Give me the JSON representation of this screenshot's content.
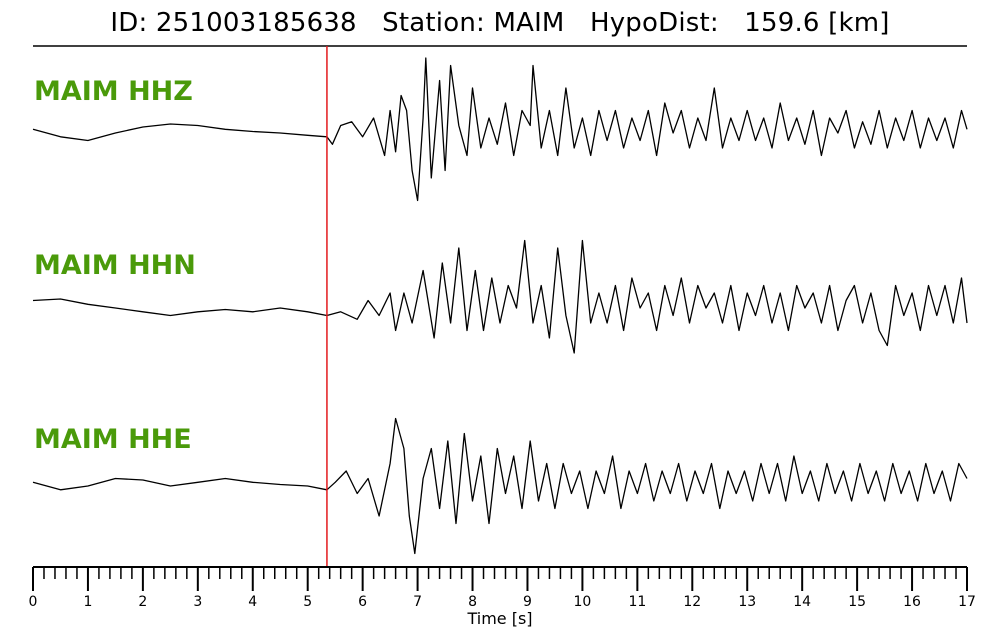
{
  "title": "ID: 251003185638   Station: MAIM   HypoDist:   159.6 [km]",
  "chart_data": {
    "type": "line",
    "title": "ID: 251003185638   Station: MAIM   HypoDist:   159.6 [km]",
    "xlabel": "Time [s]",
    "xlim": [
      0,
      17
    ],
    "x_ticks": [
      "0",
      "1",
      "2",
      "3",
      "4",
      "5",
      "6",
      "7",
      "8",
      "9",
      "10",
      "11",
      "12",
      "13",
      "14",
      "15",
      "16",
      "17"
    ],
    "minor_tick_step": 0.2,
    "p_pick_time": 5.35,
    "pick_color": "#e31a1c",
    "trace_color": "#000000",
    "label_color": "#4a9a0a",
    "grid": false,
    "traces": [
      {
        "name": "MAIM HHZ",
        "points": [
          [
            0,
            0.05
          ],
          [
            0.5,
            -0.05
          ],
          [
            1,
            -0.1
          ],
          [
            1.5,
            0.0
          ],
          [
            2,
            0.08
          ],
          [
            2.5,
            0.12
          ],
          [
            3,
            0.1
          ],
          [
            3.5,
            0.05
          ],
          [
            4,
            0.02
          ],
          [
            4.5,
            0.0
          ],
          [
            5,
            -0.03
          ],
          [
            5.35,
            -0.05
          ],
          [
            5.45,
            -0.15
          ],
          [
            5.6,
            0.1
          ],
          [
            5.8,
            0.15
          ],
          [
            6.0,
            -0.05
          ],
          [
            6.2,
            0.2
          ],
          [
            6.4,
            -0.3
          ],
          [
            6.5,
            0.3
          ],
          [
            6.6,
            -0.25
          ],
          [
            6.7,
            0.5
          ],
          [
            6.8,
            0.3
          ],
          [
            6.9,
            -0.5
          ],
          [
            7.0,
            -0.9
          ],
          [
            7.1,
            0.2
          ],
          [
            7.15,
            1.0
          ],
          [
            7.25,
            -0.6
          ],
          [
            7.4,
            0.7
          ],
          [
            7.5,
            -0.5
          ],
          [
            7.6,
            0.9
          ],
          [
            7.75,
            0.1
          ],
          [
            7.9,
            -0.3
          ],
          [
            8.0,
            0.6
          ],
          [
            8.15,
            -0.2
          ],
          [
            8.3,
            0.2
          ],
          [
            8.45,
            -0.15
          ],
          [
            8.6,
            0.4
          ],
          [
            8.75,
            -0.3
          ],
          [
            8.9,
            0.3
          ],
          [
            9.05,
            0.1
          ],
          [
            9.1,
            0.9
          ],
          [
            9.25,
            -0.2
          ],
          [
            9.4,
            0.3
          ],
          [
            9.55,
            -0.3
          ],
          [
            9.7,
            0.6
          ],
          [
            9.85,
            -0.2
          ],
          [
            10.0,
            0.2
          ],
          [
            10.15,
            -0.3
          ],
          [
            10.3,
            0.3
          ],
          [
            10.45,
            -0.1
          ],
          [
            10.6,
            0.3
          ],
          [
            10.75,
            -0.2
          ],
          [
            10.9,
            0.2
          ],
          [
            11.05,
            -0.1
          ],
          [
            11.2,
            0.3
          ],
          [
            11.35,
            -0.3
          ],
          [
            11.5,
            0.4
          ],
          [
            11.65,
            0.0
          ],
          [
            11.8,
            0.3
          ],
          [
            11.95,
            -0.2
          ],
          [
            12.1,
            0.2
          ],
          [
            12.25,
            -0.1
          ],
          [
            12.4,
            0.6
          ],
          [
            12.55,
            -0.2
          ],
          [
            12.7,
            0.2
          ],
          [
            12.85,
            -0.1
          ],
          [
            13.0,
            0.3
          ],
          [
            13.15,
            -0.1
          ],
          [
            13.3,
            0.2
          ],
          [
            13.45,
            -0.2
          ],
          [
            13.6,
            0.4
          ],
          [
            13.75,
            -0.1
          ],
          [
            13.9,
            0.2
          ],
          [
            14.05,
            -0.15
          ],
          [
            14.2,
            0.3
          ],
          [
            14.35,
            -0.3
          ],
          [
            14.5,
            0.2
          ],
          [
            14.65,
            0.0
          ],
          [
            14.8,
            0.3
          ],
          [
            14.95,
            -0.2
          ],
          [
            15.1,
            0.15
          ],
          [
            15.25,
            -0.15
          ],
          [
            15.4,
            0.3
          ],
          [
            15.55,
            -0.2
          ],
          [
            15.7,
            0.2
          ],
          [
            15.85,
            -0.1
          ],
          [
            16.0,
            0.3
          ],
          [
            16.15,
            -0.2
          ],
          [
            16.3,
            0.2
          ],
          [
            16.45,
            -0.1
          ],
          [
            16.6,
            0.2
          ],
          [
            16.75,
            -0.2
          ],
          [
            16.9,
            0.3
          ],
          [
            17.0,
            0.05
          ]
        ]
      },
      {
        "name": "MAIM HHN",
        "points": [
          [
            0,
            0.1
          ],
          [
            0.5,
            0.12
          ],
          [
            1,
            0.05
          ],
          [
            1.5,
            0.0
          ],
          [
            2,
            -0.05
          ],
          [
            2.5,
            -0.1
          ],
          [
            3,
            -0.05
          ],
          [
            3.5,
            -0.02
          ],
          [
            4,
            -0.05
          ],
          [
            4.5,
            0.0
          ],
          [
            5,
            -0.05
          ],
          [
            5.35,
            -0.1
          ],
          [
            5.6,
            -0.05
          ],
          [
            5.9,
            -0.15
          ],
          [
            6.1,
            0.1
          ],
          [
            6.3,
            -0.1
          ],
          [
            6.5,
            0.2
          ],
          [
            6.6,
            -0.3
          ],
          [
            6.75,
            0.2
          ],
          [
            6.9,
            -0.2
          ],
          [
            7.1,
            0.5
          ],
          [
            7.3,
            -0.4
          ],
          [
            7.45,
            0.6
          ],
          [
            7.6,
            -0.2
          ],
          [
            7.75,
            0.8
          ],
          [
            7.9,
            -0.3
          ],
          [
            8.05,
            0.5
          ],
          [
            8.2,
            -0.3
          ],
          [
            8.35,
            0.4
          ],
          [
            8.5,
            -0.2
          ],
          [
            8.65,
            0.3
          ],
          [
            8.8,
            0.0
          ],
          [
            8.95,
            0.9
          ],
          [
            9.1,
            -0.2
          ],
          [
            9.25,
            0.3
          ],
          [
            9.4,
            -0.4
          ],
          [
            9.55,
            0.8
          ],
          [
            9.7,
            -0.1
          ],
          [
            9.85,
            -0.6
          ],
          [
            10.0,
            0.9
          ],
          [
            10.15,
            -0.2
          ],
          [
            10.3,
            0.2
          ],
          [
            10.45,
            -0.2
          ],
          [
            10.6,
            0.3
          ],
          [
            10.75,
            -0.3
          ],
          [
            10.9,
            0.4
          ],
          [
            11.05,
            0.0
          ],
          [
            11.2,
            0.2
          ],
          [
            11.35,
            -0.3
          ],
          [
            11.5,
            0.3
          ],
          [
            11.65,
            -0.1
          ],
          [
            11.8,
            0.4
          ],
          [
            11.95,
            -0.2
          ],
          [
            12.1,
            0.3
          ],
          [
            12.25,
            0.0
          ],
          [
            12.4,
            0.2
          ],
          [
            12.55,
            -0.2
          ],
          [
            12.7,
            0.3
          ],
          [
            12.85,
            -0.3
          ],
          [
            13.0,
            0.2
          ],
          [
            13.15,
            -0.1
          ],
          [
            13.3,
            0.3
          ],
          [
            13.45,
            -0.2
          ],
          [
            13.6,
            0.2
          ],
          [
            13.75,
            -0.3
          ],
          [
            13.9,
            0.3
          ],
          [
            14.05,
            0.0
          ],
          [
            14.2,
            0.2
          ],
          [
            14.35,
            -0.2
          ],
          [
            14.5,
            0.3
          ],
          [
            14.65,
            -0.3
          ],
          [
            14.8,
            0.1
          ],
          [
            14.95,
            0.3
          ],
          [
            15.1,
            -0.2
          ],
          [
            15.25,
            0.2
          ],
          [
            15.4,
            -0.3
          ],
          [
            15.55,
            -0.5
          ],
          [
            15.7,
            0.3
          ],
          [
            15.85,
            -0.1
          ],
          [
            16.0,
            0.2
          ],
          [
            16.15,
            -0.3
          ],
          [
            16.3,
            0.3
          ],
          [
            16.45,
            -0.1
          ],
          [
            16.6,
            0.3
          ],
          [
            16.75,
            -0.2
          ],
          [
            16.9,
            0.4
          ],
          [
            17.0,
            -0.2
          ]
        ]
      },
      {
        "name": "MAIM HHE",
        "points": [
          [
            0,
            0.05
          ],
          [
            0.5,
            -0.05
          ],
          [
            1,
            0.0
          ],
          [
            1.5,
            0.1
          ],
          [
            2,
            0.08
          ],
          [
            2.5,
            0.0
          ],
          [
            3,
            0.05
          ],
          [
            3.5,
            0.1
          ],
          [
            4,
            0.05
          ],
          [
            4.5,
            0.02
          ],
          [
            5,
            0.0
          ],
          [
            5.35,
            -0.05
          ],
          [
            5.5,
            0.05
          ],
          [
            5.7,
            0.2
          ],
          [
            5.9,
            -0.1
          ],
          [
            6.1,
            0.1
          ],
          [
            6.3,
            -0.4
          ],
          [
            6.5,
            0.3
          ],
          [
            6.6,
            0.9
          ],
          [
            6.75,
            0.5
          ],
          [
            6.85,
            -0.4
          ],
          [
            6.95,
            -0.9
          ],
          [
            7.1,
            0.1
          ],
          [
            7.25,
            0.5
          ],
          [
            7.4,
            -0.3
          ],
          [
            7.55,
            0.6
          ],
          [
            7.7,
            -0.5
          ],
          [
            7.85,
            0.7
          ],
          [
            8.0,
            -0.2
          ],
          [
            8.15,
            0.4
          ],
          [
            8.3,
            -0.5
          ],
          [
            8.45,
            0.5
          ],
          [
            8.6,
            -0.1
          ],
          [
            8.75,
            0.4
          ],
          [
            8.9,
            -0.3
          ],
          [
            9.05,
            0.6
          ],
          [
            9.2,
            -0.2
          ],
          [
            9.35,
            0.3
          ],
          [
            9.5,
            -0.3
          ],
          [
            9.65,
            0.3
          ],
          [
            9.8,
            -0.1
          ],
          [
            9.95,
            0.2
          ],
          [
            10.1,
            -0.3
          ],
          [
            10.25,
            0.2
          ],
          [
            10.4,
            -0.1
          ],
          [
            10.55,
            0.4
          ],
          [
            10.7,
            -0.3
          ],
          [
            10.85,
            0.2
          ],
          [
            11.0,
            -0.1
          ],
          [
            11.15,
            0.3
          ],
          [
            11.3,
            -0.2
          ],
          [
            11.45,
            0.2
          ],
          [
            11.6,
            -0.1
          ],
          [
            11.75,
            0.3
          ],
          [
            11.9,
            -0.2
          ],
          [
            12.05,
            0.2
          ],
          [
            12.2,
            -0.1
          ],
          [
            12.35,
            0.3
          ],
          [
            12.5,
            -0.3
          ],
          [
            12.65,
            0.2
          ],
          [
            12.8,
            -0.1
          ],
          [
            12.95,
            0.2
          ],
          [
            13.1,
            -0.2
          ],
          [
            13.25,
            0.3
          ],
          [
            13.4,
            -0.1
          ],
          [
            13.55,
            0.3
          ],
          [
            13.7,
            -0.2
          ],
          [
            13.85,
            0.4
          ],
          [
            14.0,
            -0.1
          ],
          [
            14.15,
            0.2
          ],
          [
            14.3,
            -0.2
          ],
          [
            14.45,
            0.3
          ],
          [
            14.6,
            -0.1
          ],
          [
            14.75,
            0.2
          ],
          [
            14.9,
            -0.2
          ],
          [
            15.05,
            0.3
          ],
          [
            15.2,
            -0.1
          ],
          [
            15.35,
            0.2
          ],
          [
            15.5,
            -0.2
          ],
          [
            15.65,
            0.3
          ],
          [
            15.8,
            -0.1
          ],
          [
            15.95,
            0.2
          ],
          [
            16.1,
            -0.2
          ],
          [
            16.25,
            0.3
          ],
          [
            16.4,
            -0.1
          ],
          [
            16.55,
            0.2
          ],
          [
            16.7,
            -0.2
          ],
          [
            16.85,
            0.3
          ],
          [
            17.0,
            0.1
          ]
        ]
      }
    ]
  }
}
